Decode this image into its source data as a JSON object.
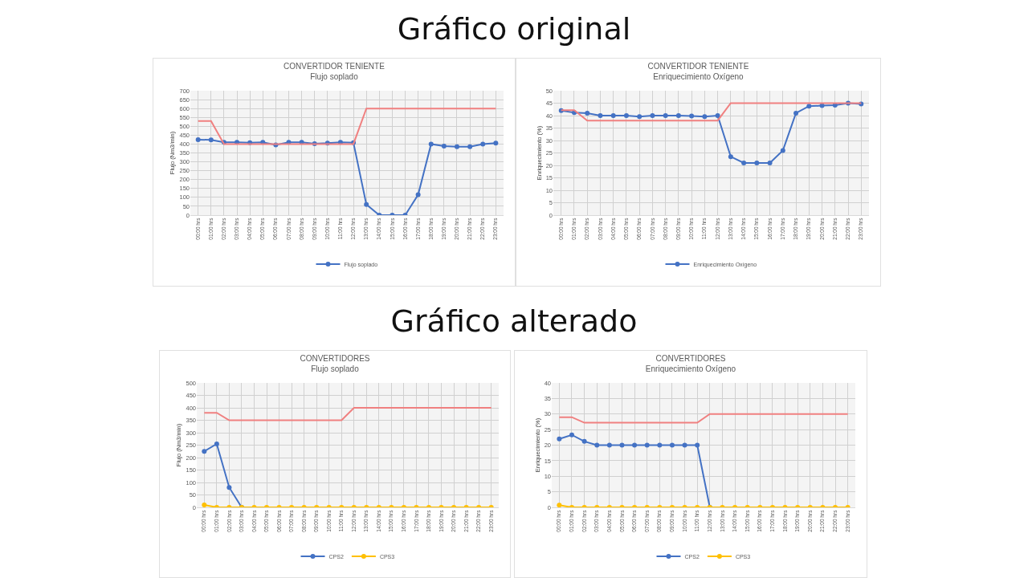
{
  "chart_data": [
    {
      "type": "line",
      "title": "CONVERTIDOR TENIENTE",
      "subtitle": "Flujo soplado",
      "ylabel": "Flujo (Nm3/min)",
      "annotations": [
        "Gráfico original"
      ],
      "categories": [
        "00:00 hrs",
        "01:00 hrs",
        "02:00 hrs",
        "03:00 hrs",
        "04:00 hrs",
        "05:00 hrs",
        "06:00 hrs",
        "07:00 hrs",
        "08:00 hrs",
        "09:00 hrs",
        "10:00 hrs",
        "11:00 hrs",
        "12:00 hrs",
        "13:00 hrs",
        "14:00 hrs",
        "15:00 hrs",
        "16:00 hrs",
        "17:00 hrs",
        "18:00 hrs",
        "19:00 hrs",
        "20:00 hrs",
        "21:00 hrs",
        "22:00 hrs",
        "23:00 hrs"
      ],
      "series": [
        {
          "name": "Flujo soplado",
          "color": "#4472c4",
          "values": [
            425,
            423,
            410,
            410,
            408,
            410,
            395,
            410,
            410,
            402,
            405,
            410,
            408,
            60,
            0,
            0,
            0,
            115,
            400,
            388,
            385,
            385,
            400,
            405
          ]
        },
        {
          "color": "#f08080",
          "marker": "none",
          "values": [
            530,
            530,
            400,
            400,
            400,
            400,
            400,
            400,
            400,
            400,
            400,
            400,
            400,
            600,
            600,
            600,
            600,
            600,
            600,
            600,
            600,
            600,
            600,
            600
          ]
        }
      ],
      "ylim": [
        0,
        700
      ],
      "yticks": [
        0,
        50,
        100,
        150,
        200,
        250,
        300,
        350,
        400,
        450,
        500,
        550,
        600,
        650,
        700
      ],
      "grid": true,
      "legend": "bottom",
      "marker": "circle"
    },
    {
      "type": "line",
      "title": "CONVERTIDOR TENIENTE",
      "subtitle": "Enriquecimiento Oxígeno",
      "ylabel": "Enriquecimiento (%)",
      "categories": [
        "00:00 hrs",
        "01:00 hrs",
        "02:00 hrs",
        "03:00 hrs",
        "04:00 hrs",
        "05:00 hrs",
        "06:00 hrs",
        "07:00 hrs",
        "08:00 hrs",
        "09:00 hrs",
        "10:00 hrs",
        "11:00 hrs",
        "12:00 hrs",
        "13:00 hrs",
        "14:00 hrs",
        "15:00 hrs",
        "16:00 hrs",
        "17:00 hrs",
        "18:00 hrs",
        "19:00 hrs",
        "20:00 hrs",
        "21:00 hrs",
        "22:00 hrs",
        "23:00 hrs"
      ],
      "series": [
        {
          "name": "Enriquecimiento Oxígeno",
          "color": "#4472c4",
          "values": [
            42,
            41.2,
            41,
            40,
            40,
            40,
            39.6,
            40,
            40,
            40,
            39.8,
            39.6,
            40,
            23.5,
            21,
            21,
            21,
            26,
            41,
            43.8,
            44,
            44.2,
            45,
            44.7
          ]
        },
        {
          "color": "#f08080",
          "marker": "none",
          "values": [
            42.2,
            42.2,
            38,
            38,
            38,
            38,
            38,
            38,
            38,
            38,
            38,
            38,
            38,
            45,
            45,
            45,
            45,
            45,
            45,
            45,
            45,
            45,
            45,
            45
          ]
        }
      ],
      "ylim": [
        0,
        50
      ],
      "yticks": [
        0,
        5,
        10,
        15,
        20,
        25,
        30,
        35,
        40,
        45,
        50
      ],
      "grid": true,
      "legend": "bottom",
      "marker": "circle"
    },
    {
      "type": "line",
      "title": "CONVERTIDORES",
      "subtitle": "Flujo soplado",
      "ylabel": "Flujo (Nm3/min)",
      "annotations": [
        "Gráfico alterado"
      ],
      "categories": [
        "00:00 hrs",
        "01:00 hrs",
        "02:00 hrs",
        "03:00 hrs",
        "04:00 hrs",
        "05:00 hrs",
        "06:00 hrs",
        "07:00 hrs",
        "08:00 hrs",
        "09:00 hrs",
        "10:00 hrs",
        "11:00 hrs",
        "12:00 hrs",
        "13:00 hrs",
        "14:00 hrs",
        "15:00 hrs",
        "16:00 hrs",
        "17:00 hrs",
        "18:00 hrs",
        "19:00 hrs",
        "20:00 hrs",
        "21:00 hrs",
        "22:00 hrs",
        "23:00 hrs"
      ],
      "series": [
        {
          "color": "#f08080",
          "marker": "none",
          "values": [
            380,
            380,
            350,
            350,
            350,
            350,
            350,
            350,
            350,
            350,
            350,
            350,
            400,
            400,
            400,
            400,
            400,
            400,
            400,
            400,
            400,
            400,
            400,
            400
          ]
        },
        {
          "name": "CPS2",
          "color": "#4472c4",
          "values": [
            225,
            255,
            80,
            0,
            null,
            null,
            null,
            null,
            null,
            null,
            null,
            null,
            null,
            null,
            null,
            null,
            null,
            null,
            null,
            null,
            null,
            null,
            null,
            null
          ]
        },
        {
          "name": "CPS3",
          "color": "#ffc000",
          "values": [
            10,
            0,
            0,
            0,
            0,
            0,
            0,
            0,
            0,
            0,
            0,
            0,
            0,
            0,
            0,
            0,
            0,
            0,
            0,
            0,
            0,
            0,
            0,
            0
          ]
        }
      ],
      "ylim": [
        0,
        500
      ],
      "yticks": [
        0,
        50,
        100,
        150,
        200,
        250,
        300,
        350,
        400,
        450,
        500
      ],
      "grid": true,
      "legend": "bottom",
      "marker": "circle"
    },
    {
      "type": "line",
      "title": "CONVERTIDORES",
      "subtitle": "Enriquecimiento Oxígeno",
      "ylabel": "Enriquecimiento (%)",
      "categories": [
        "00:00 hrs",
        "01:00 hrs",
        "02:00 hrs",
        "03:00 hrs",
        "04:00 hrs",
        "05:00 hrs",
        "06:00 hrs",
        "07:00 hrs",
        "08:00 hrs",
        "09:00 hrs",
        "10:00 hrs",
        "11:00 hrs",
        "12:00 hrs",
        "13:00 hrs",
        "14:00 hrs",
        "15:00 hrs",
        "16:00 hrs",
        "17:00 hrs",
        "18:00 hrs",
        "19:00 hrs",
        "20:00 hrs",
        "21:00 hrs",
        "22:00 hrs",
        "23:00 hrs"
      ],
      "series": [
        {
          "color": "#f08080",
          "marker": "none",
          "values": [
            29,
            29,
            27.2,
            27.2,
            27.2,
            27.2,
            27.2,
            27.2,
            27.2,
            27.2,
            27.2,
            27.2,
            30,
            30,
            30,
            30,
            30,
            30,
            30,
            30,
            30,
            30,
            30,
            30
          ]
        },
        {
          "name": "CPS2",
          "color": "#4472c4",
          "values": [
            22,
            23.3,
            21.2,
            20,
            20,
            20,
            20,
            20,
            20,
            20,
            20,
            20,
            0,
            null,
            null,
            null,
            null,
            null,
            null,
            null,
            null,
            null,
            null,
            null
          ]
        },
        {
          "name": "CPS3",
          "color": "#ffc000",
          "values": [
            0.7,
            0,
            0,
            0,
            0,
            0,
            0,
            0,
            0,
            0,
            0,
            0,
            0,
            0,
            0,
            0,
            0,
            0,
            0,
            0,
            0,
            0,
            0,
            0
          ]
        }
      ],
      "ylim": [
        0,
        40
      ],
      "yticks": [
        0,
        5,
        10,
        15,
        20,
        25,
        30,
        35,
        40
      ],
      "grid": true,
      "legend": "bottom",
      "marker": "circle"
    }
  ]
}
